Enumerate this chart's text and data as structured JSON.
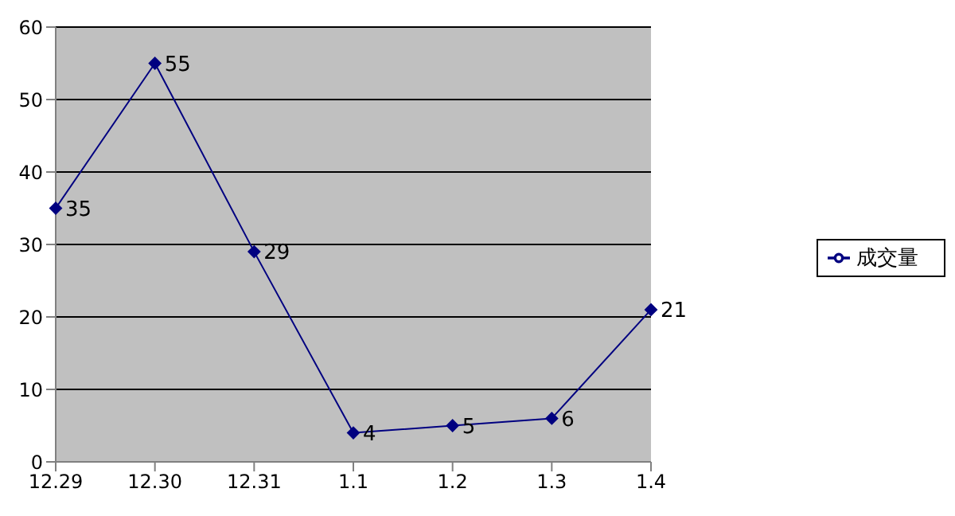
{
  "chart_data": {
    "type": "line",
    "categories": [
      "12.29",
      "12.30",
      "12.31",
      "1.1",
      "1.2",
      "1.3",
      "1.4"
    ],
    "series": [
      {
        "name": "成交量",
        "color": "#000080",
        "values": [
          35,
          55,
          29,
          4,
          5,
          6,
          21
        ]
      }
    ],
    "ylim": [
      0,
      60
    ],
    "yticks": [
      0,
      10,
      20,
      30,
      40,
      50,
      60
    ],
    "grid": "y",
    "legend": "right",
    "marker": "diamond",
    "line_style": "solid",
    "data_labels": true
  }
}
